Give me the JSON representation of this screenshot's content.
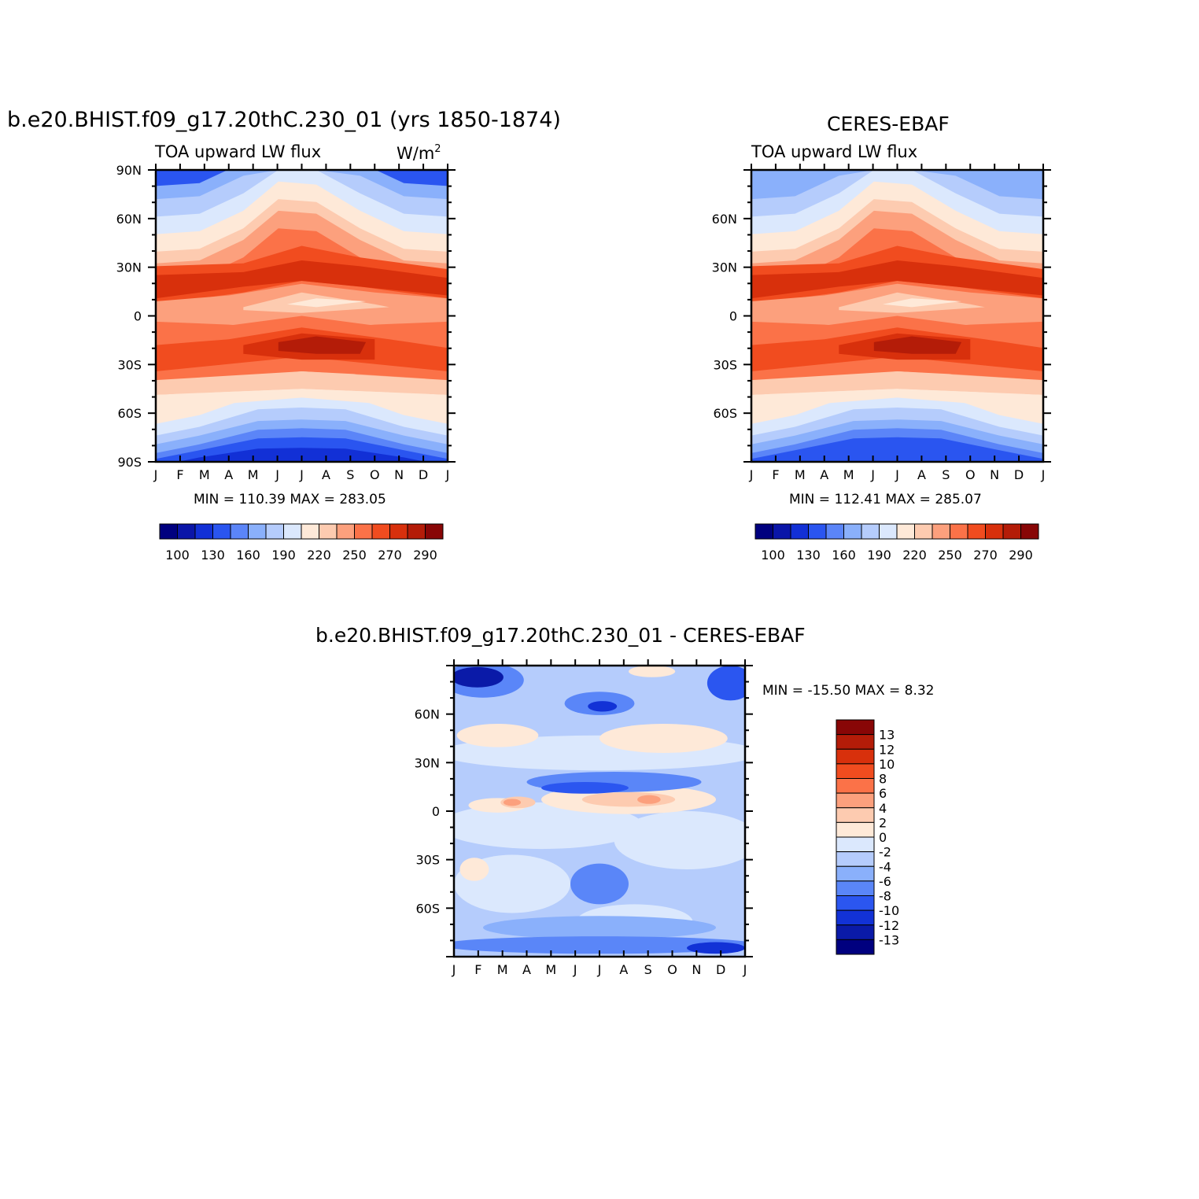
{
  "panel_left": {
    "title": "b.e20.BHIST.f09_g17.20thC.230_01 (yrs 1850-1874)",
    "subtitle_left": "TOA upward LW flux",
    "subtitle_right": "W/m",
    "subtitle_right_sup": "2",
    "minmax": "MIN = 110.39  MAX = 283.05"
  },
  "panel_right": {
    "title": "CERES-EBAF",
    "subtitle_left": "TOA upward LW flux",
    "minmax": "MIN = 112.41  MAX = 285.07"
  },
  "panel_diff": {
    "title": "b.e20.BHIST.f09_g17.20thC.230_01 - CERES-EBAF",
    "minmax": "MIN = -15.50  MAX =    8.32"
  },
  "colors": {
    "abs_scale": [
      "#00007f",
      "#0a15a8",
      "#1230d6",
      "#2a55f0",
      "#5b85f8",
      "#8ab0fb",
      "#b5ccfc",
      "#dbe8fd",
      "#fee9d8",
      "#fdcbb0",
      "#fca07d",
      "#fb7248",
      "#f14c1f",
      "#d8300c",
      "#b41c08",
      "#880606"
    ],
    "diff_scale": [
      "#00007f",
      "#0a1aa8",
      "#1232d6",
      "#2b56f0",
      "#5a86f8",
      "#8ab0fb",
      "#b5ccfc",
      "#dbe8fd",
      "#fee9d8",
      "#fdcbb0",
      "#fca07d",
      "#fb7248",
      "#f14c1f",
      "#d8300c",
      "#b41c08",
      "#880606"
    ]
  },
  "chart_data": [
    {
      "type": "heatmap",
      "title": "b.e20.BHIST.f09_g17.20thC.230_01 (yrs 1850-1874)",
      "subtitle": "TOA upward LW flux",
      "units": "W/m2",
      "x_tick_labels": [
        "J",
        "F",
        "M",
        "A",
        "M",
        "J",
        "J",
        "A",
        "S",
        "O",
        "N",
        "D",
        "J"
      ],
      "y_tick_labels": [
        "90N",
        "60N",
        "30N",
        "0",
        "30S",
        "60S",
        "90S"
      ],
      "colorbar_labels": [
        "100",
        "130",
        "160",
        "190",
        "220",
        "250",
        "270",
        "290"
      ],
      "min": 110.39,
      "max": 283.05
    },
    {
      "type": "heatmap",
      "title": "CERES-EBAF",
      "subtitle": "TOA upward LW flux",
      "x_tick_labels": [
        "J",
        "F",
        "M",
        "A",
        "M",
        "J",
        "J",
        "A",
        "S",
        "O",
        "N",
        "D",
        "J"
      ],
      "y_tick_labels": [
        "60N",
        "30N",
        "0",
        "30S",
        "60S"
      ],
      "colorbar_labels": [
        "100",
        "130",
        "160",
        "190",
        "220",
        "250",
        "270",
        "290"
      ],
      "min": 112.41,
      "max": 285.07
    },
    {
      "type": "heatmap",
      "title": "b.e20.BHIST.f09_g17.20thC.230_01 - CERES-EBAF",
      "x_tick_labels": [
        "J",
        "F",
        "M",
        "A",
        "M",
        "J",
        "J",
        "A",
        "S",
        "O",
        "N",
        "D",
        "J"
      ],
      "y_tick_labels": [
        "60N",
        "30N",
        "0",
        "30S",
        "60S"
      ],
      "colorbar_labels": [
        "13",
        "12",
        "10",
        "8",
        "6",
        "4",
        "2",
        "0",
        "-2",
        "-4",
        "-6",
        "-8",
        "-10",
        "-12",
        "-13"
      ],
      "min": -15.5,
      "max": 8.32
    }
  ]
}
